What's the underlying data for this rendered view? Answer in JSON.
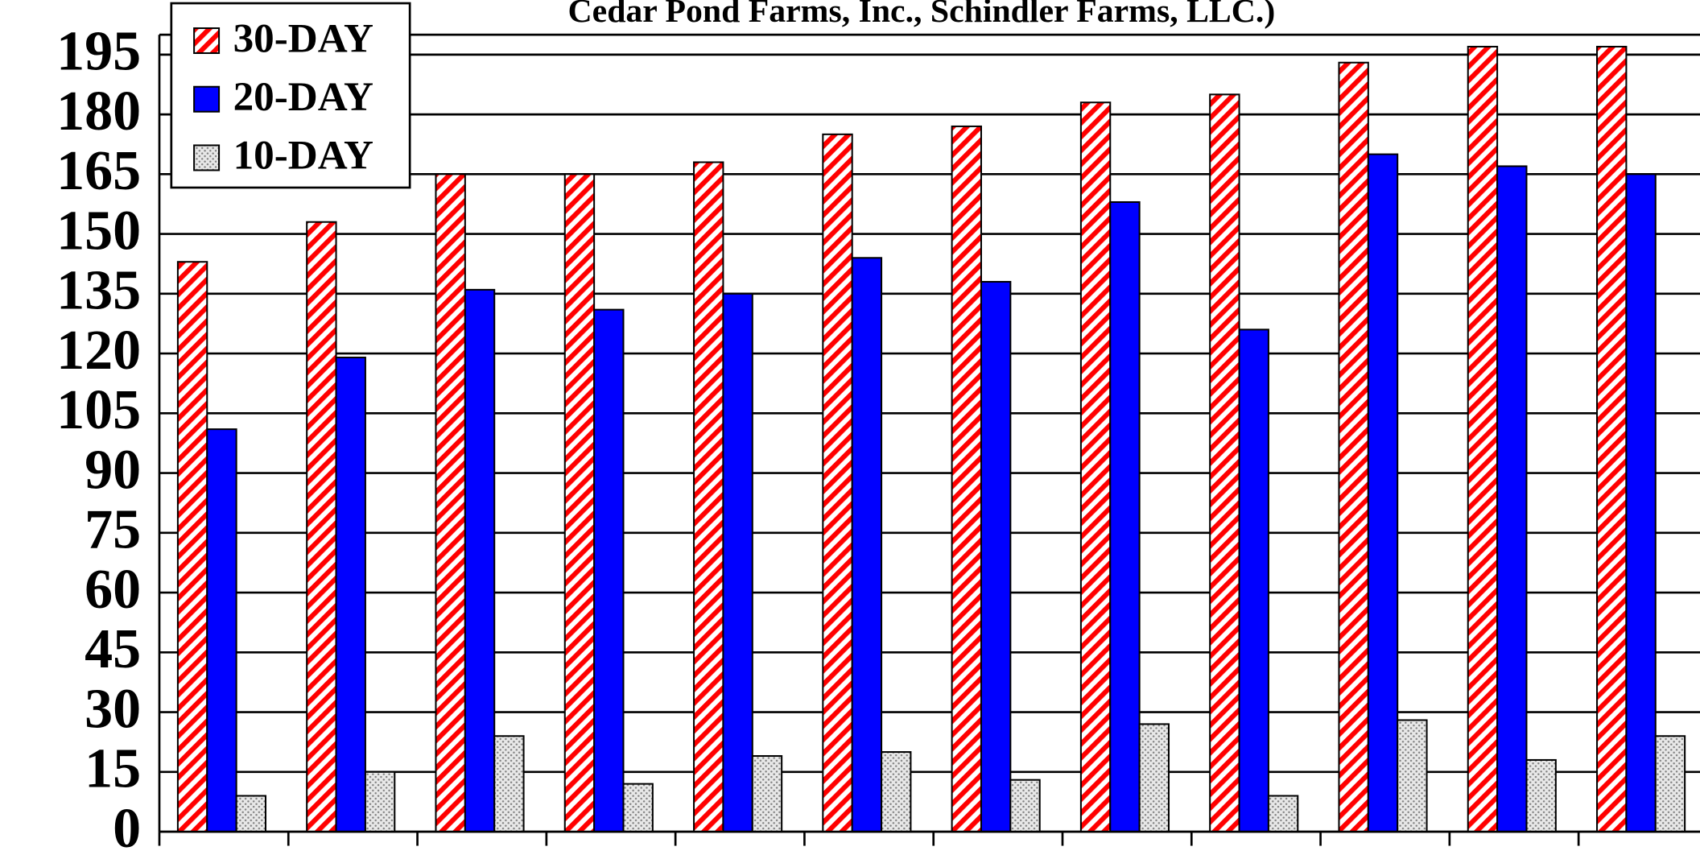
{
  "chart_data": {
    "type": "bar",
    "title": "Cedar Pond Farms, Inc., Schindler Farms, LLC.)",
    "categories": [
      null,
      null,
      null,
      null,
      null,
      null,
      null,
      null,
      null,
      null,
      null,
      null
    ],
    "series": [
      {
        "name": "30-DAY",
        "color": "#ff0000",
        "pattern": "hatch",
        "values": [
          143,
          153,
          165,
          165,
          168,
          175,
          177,
          183,
          185,
          193,
          197,
          197
        ]
      },
      {
        "name": "20-DAY",
        "color": "#0000ff",
        "pattern": "solid",
        "values": [
          101,
          119,
          136,
          131,
          135,
          144,
          138,
          158,
          126,
          170,
          167,
          165
        ]
      },
      {
        "name": "10-DAY",
        "color": "#808080",
        "pattern": "dots",
        "values": [
          9,
          15,
          24,
          12,
          19,
          20,
          13,
          27,
          9,
          28,
          18,
          24
        ]
      }
    ],
    "ylim": [
      0,
      200
    ],
    "yticks": [
      0,
      15,
      30,
      45,
      60,
      75,
      90,
      105,
      120,
      135,
      150,
      165,
      180,
      195
    ],
    "grid": true,
    "legend": "top-left"
  }
}
